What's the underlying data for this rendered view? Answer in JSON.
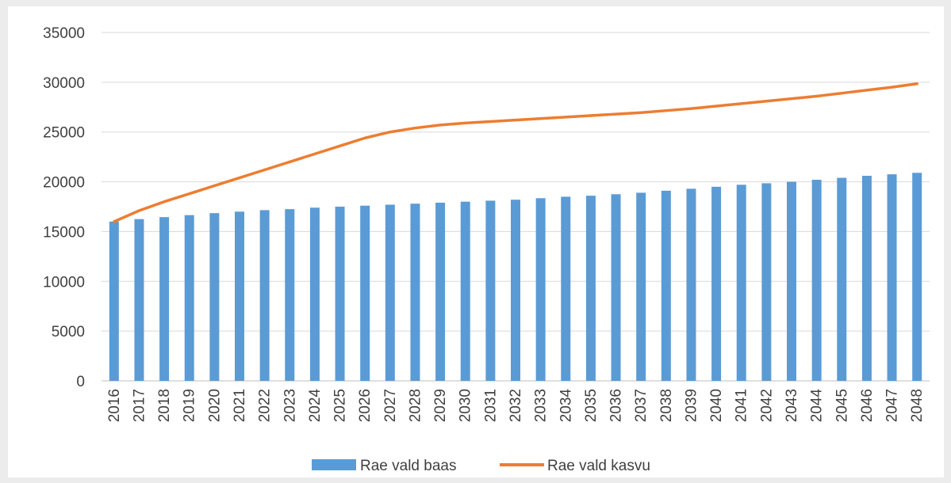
{
  "chart_data": {
    "type": "bar",
    "title": "",
    "xlabel": "",
    "ylabel": "",
    "ylim": [
      0,
      35000
    ],
    "yticks": [
      0,
      5000,
      10000,
      15000,
      20000,
      25000,
      30000,
      35000
    ],
    "grid": true,
    "legend": "bottom",
    "categories": [
      "2016",
      "2017",
      "2018",
      "2019",
      "2020",
      "2021",
      "2022",
      "2023",
      "2024",
      "2025",
      "2026",
      "2027",
      "2028",
      "2029",
      "2030",
      "2031",
      "2032",
      "2033",
      "2034",
      "2035",
      "2036",
      "2037",
      "2038",
      "2039",
      "2040",
      "2041",
      "2042",
      "2043",
      "2044",
      "2045",
      "2046",
      "2047",
      "2048"
    ],
    "series": [
      {
        "name": "Rae vald baas",
        "type": "bar",
        "color": "#5b9bd5",
        "values": [
          16000,
          16250,
          16450,
          16650,
          16850,
          17000,
          17150,
          17250,
          17400,
          17500,
          17600,
          17700,
          17800,
          17900,
          18000,
          18100,
          18200,
          18350,
          18500,
          18600,
          18750,
          18900,
          19100,
          19300,
          19500,
          19700,
          19850,
          20000,
          20200,
          20400,
          20600,
          20750,
          20900
        ]
      },
      {
        "name": "Rae vald kasvu",
        "type": "line",
        "color": "#ed7d31",
        "values": [
          16000,
          17100,
          18000,
          18800,
          19600,
          20400,
          21200,
          22000,
          22800,
          23600,
          24400,
          25000,
          25400,
          25700,
          25900,
          26050,
          26200,
          26350,
          26500,
          26650,
          26800,
          26950,
          27150,
          27350,
          27600,
          27850,
          28100,
          28350,
          28600,
          28900,
          29200,
          29500,
          29850
        ]
      }
    ]
  }
}
